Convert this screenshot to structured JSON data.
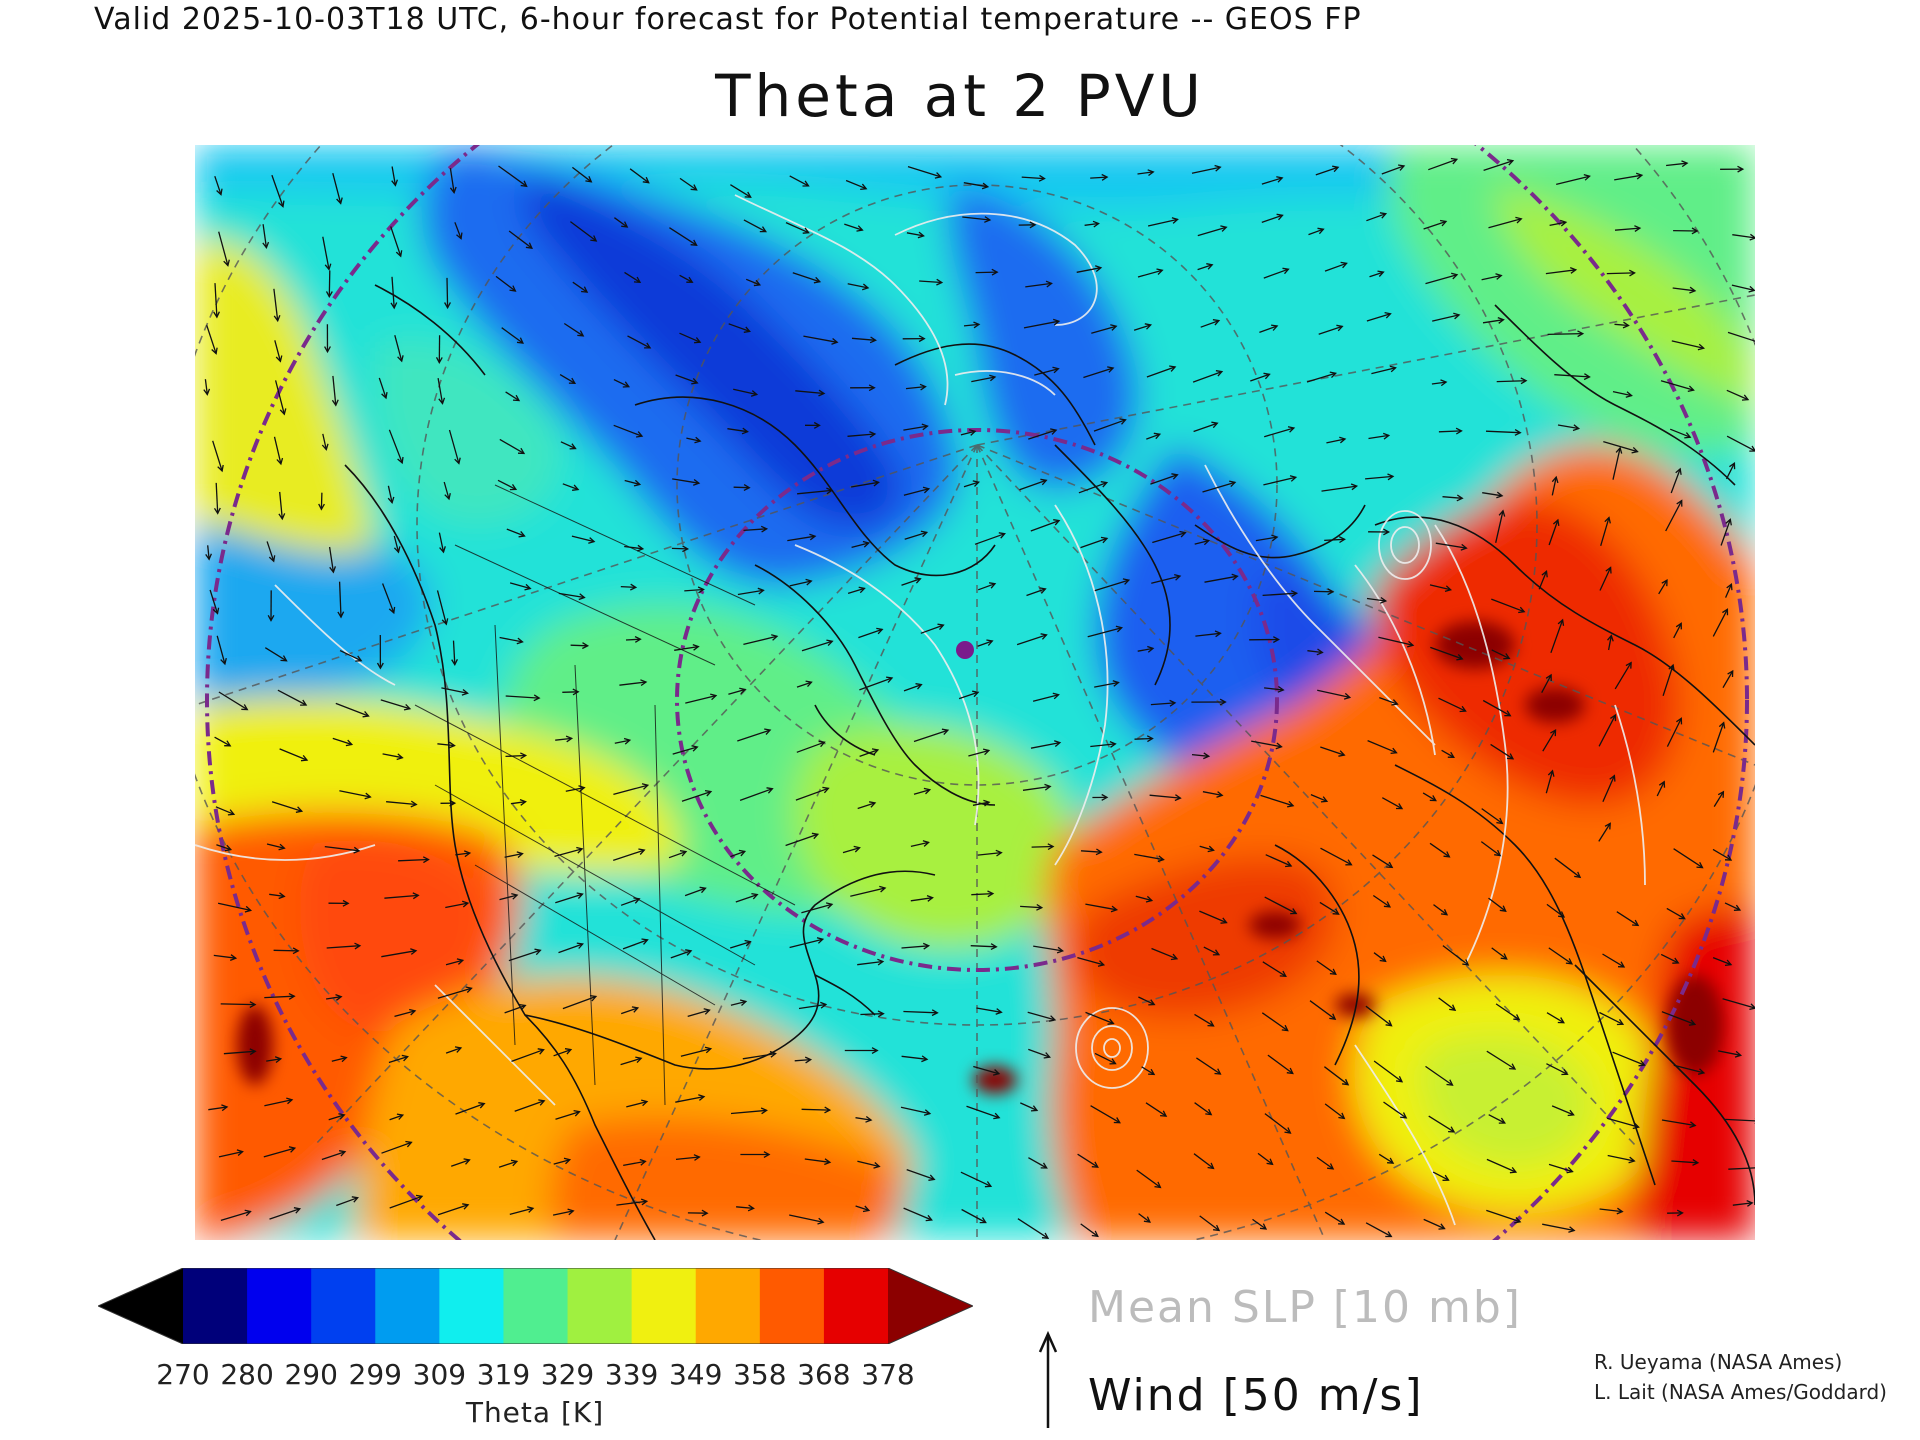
{
  "header": {
    "valid_line": "Valid 2025-10-03T18 UTC, 6-hour forecast for Potential temperature -- GEOS FP"
  },
  "map": {
    "title": "Theta at 2 PVU",
    "colors": {
      "ocean_cold": "#1e5ff0",
      "arctic_blue": "#0a3ad8",
      "cyan": "#18e6e6",
      "green": "#50ee90",
      "lime": "#a8f040",
      "yellow": "#f0f010",
      "orange": "#ffa800",
      "red_orange": "#ff5a00",
      "red": "#e60000",
      "dark_red": "#8c0000",
      "boundary_line": "#111111",
      "graticule": "#555555",
      "circle": "#7a2a8c",
      "isobar": "#eeeeee"
    },
    "marker_icon": "location-dot-icon"
  },
  "colorbar": {
    "ticks": [
      "270",
      "280",
      "290",
      "299",
      "309",
      "319",
      "329",
      "339",
      "349",
      "358",
      "368",
      "378"
    ],
    "label": "Theta [K]",
    "colors": [
      "#000000",
      "#00007a",
      "#0000ee",
      "#0040f0",
      "#009cf0",
      "#10eeee",
      "#50ee90",
      "#a0f040",
      "#f0f010",
      "#ffa800",
      "#ff5a00",
      "#e60000",
      "#8c0000"
    ]
  },
  "legend": {
    "slp": "Mean SLP [10 mb]",
    "wind": "Wind [50 m/s]",
    "wind_arrow_icon": "up-arrow-icon"
  },
  "credits": {
    "line1": "R. Ueyama (NASA Ames)",
    "line2": "L. Lait (NASA Ames/Goddard)"
  }
}
